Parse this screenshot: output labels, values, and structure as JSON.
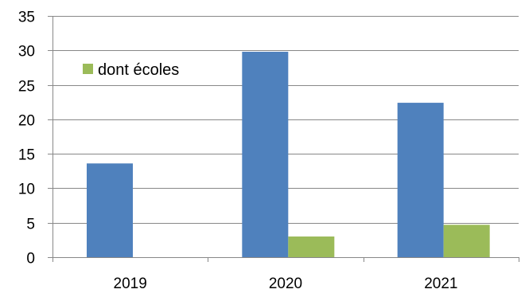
{
  "chart_data": {
    "type": "bar",
    "categories": [
      "2019",
      "2020",
      "2021"
    ],
    "series": [
      {
        "values": [
          13.6,
          29.8,
          22.4
        ],
        "color": "#4F81BD"
      },
      {
        "name": "dont écoles",
        "values": [
          0,
          3.0,
          4.7
        ],
        "color": "#9BBB59"
      }
    ],
    "ylim": [
      0,
      35
    ],
    "yticks": [
      0,
      5,
      10,
      15,
      20,
      25,
      30,
      35
    ],
    "grid": true,
    "legend": {
      "position": "top-left",
      "entries": [
        "dont écoles"
      ]
    }
  }
}
